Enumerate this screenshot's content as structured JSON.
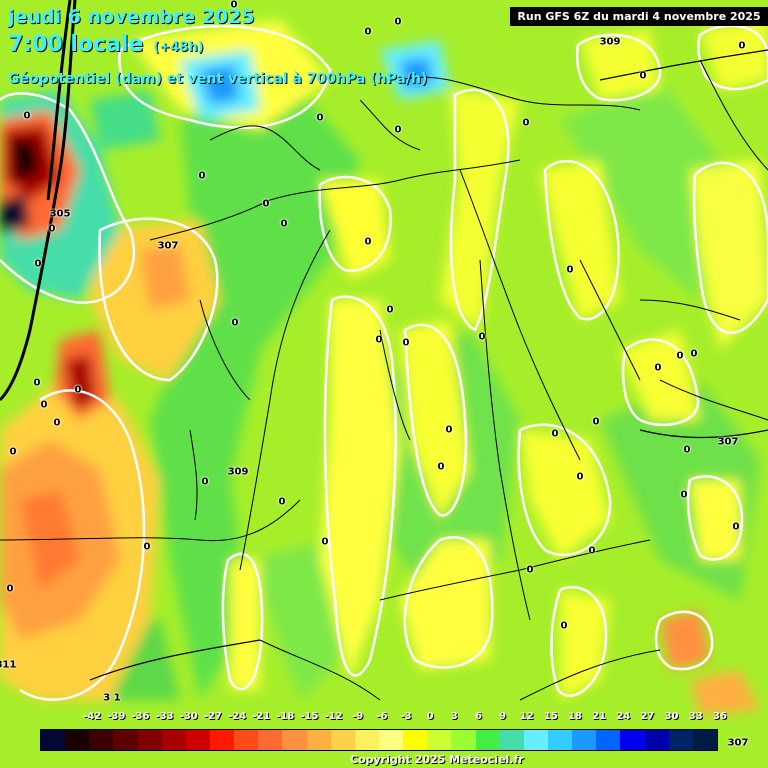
{
  "header": {
    "date_line": "jeudi 6 novembre 2025",
    "time_line": "7:00 locale",
    "lead_time": "(+48h)",
    "parameter": "Géopotentiel (dam) et vent vertical à 700hPa (hPa/h)"
  },
  "run_info": "Run GFS 6Z du mardi 4 novembre 2025",
  "geopotential_labels": [
    {
      "text": "309",
      "id": "geo-309-ne"
    },
    {
      "text": "307",
      "id": "geo-307-w"
    },
    {
      "text": "305",
      "id": "geo-305-w"
    },
    {
      "text": "309",
      "id": "geo-309-c"
    },
    {
      "text": "307",
      "id": "geo-307-e"
    },
    {
      "text": "311",
      "id": "geo-311-sw"
    },
    {
      "text": "3 1",
      "id": "geo-31-s"
    },
    {
      "text": "307",
      "id": "geo-307-se"
    }
  ],
  "zero_labels": [
    "0",
    "0",
    "0",
    "0",
    "0",
    "0",
    "0",
    "0",
    "0",
    "0",
    "0",
    "0",
    "0",
    "0",
    "0",
    "0",
    "0",
    "0",
    "0",
    "0",
    "0",
    "0",
    "0",
    "0",
    "0",
    "0",
    "0",
    "0",
    "0",
    "0",
    "0",
    "0",
    "0",
    "0",
    "0",
    "0",
    "0",
    "0",
    "0",
    "0",
    "0",
    "0",
    "0",
    "0",
    "0"
  ],
  "legend": {
    "ticks": [
      "-42",
      "-39",
      "-36",
      "-33",
      "-30",
      "-27",
      "-24",
      "-21",
      "-18",
      "-15",
      "-12",
      "-9",
      "-6",
      "-3",
      "0",
      "3",
      "6",
      "9",
      "12",
      "15",
      "18",
      "21",
      "24",
      "27",
      "30",
      "33",
      "36"
    ],
    "colors": [
      "#000833",
      "#1a0000",
      "#3d0000",
      "#5c0000",
      "#800000",
      "#a80000",
      "#d00000",
      "#ff1a00",
      "#ff4a1a",
      "#ff6a33",
      "#ff9040",
      "#ffb040",
      "#ffd04a",
      "#fff060",
      "#ffff80",
      "#ffff00",
      "#ccff33",
      "#99ff33",
      "#44ee44",
      "#44ddaa",
      "#66eeff",
      "#33ccff",
      "#1a99ff",
      "#0066ff",
      "#0000ee",
      "#0000aa",
      "#002266",
      "#001a44"
    ]
  },
  "copyright": "Copyright 2025 Meteociel.fr"
}
